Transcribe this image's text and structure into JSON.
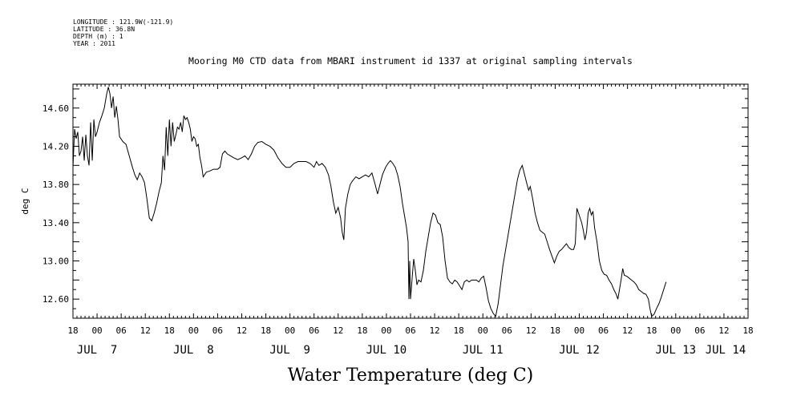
{
  "header": {
    "lines": [
      "LONGITUDE : 121.9W(-121.9)",
      "LATITUDE : 36.8N",
      "DEPTH (m) : 1",
      "YEAR : 2011"
    ]
  },
  "chart_data": {
    "type": "line",
    "title": "Mooring M0 CTD data from MBARI instrument id 1337 at original sampling intervals",
    "xlabel": "Water Temperature (deg C)",
    "ylabel": "deg C",
    "x_unit": "hours since JUL 6 18:00 (2011)",
    "xlim": [
      0,
      168
    ],
    "ylim": [
      12.4,
      14.85
    ],
    "y_ticks": [
      12.6,
      13.0,
      13.4,
      13.8,
      14.2,
      14.6
    ],
    "y_tick_labels": [
      "12.60",
      "13.00",
      "13.40",
      "13.80",
      "14.20",
      "14.60"
    ],
    "x_hour_labels": [
      "18",
      "00",
      "06",
      "12",
      "18",
      "00",
      "06",
      "12",
      "18",
      "00",
      "06",
      "12",
      "18",
      "00",
      "06",
      "12",
      "18",
      "00",
      "06",
      "12",
      "18",
      "00",
      "06",
      "12",
      "18",
      "00",
      "06",
      "12",
      "18"
    ],
    "day_labels": [
      {
        "text": "JUL  7",
        "hour": 6
      },
      {
        "text": "JUL  8",
        "hour": 30
      },
      {
        "text": "JUL  9",
        "hour": 54
      },
      {
        "text": "JUL 10",
        "hour": 78
      },
      {
        "text": "JUL 11",
        "hour": 102
      },
      {
        "text": "JUL 12",
        "hour": 126
      },
      {
        "text": "JUL 13",
        "hour": 150
      },
      {
        "text": "JUL 14",
        "hour": 174
      }
    ],
    "series": [
      {
        "color": "#000000",
        "points": [
          [
            0,
            13.98
          ],
          [
            0.4,
            14.38
          ],
          [
            0.8,
            14.28
          ],
          [
            1.2,
            14.35
          ],
          [
            1.6,
            14.1
          ],
          [
            2,
            14.15
          ],
          [
            2.4,
            14.3
          ],
          [
            2.8,
            14.05
          ],
          [
            3.2,
            14.32
          ],
          [
            3.6,
            14.1
          ],
          [
            4,
            14.0
          ],
          [
            4.4,
            14.45
          ],
          [
            4.8,
            14.05
          ],
          [
            5.2,
            14.48
          ],
          [
            5.6,
            14.3
          ],
          [
            6,
            14.35
          ],
          [
            6.6,
            14.45
          ],
          [
            7.2,
            14.52
          ],
          [
            7.8,
            14.6
          ],
          [
            8.4,
            14.75
          ],
          [
            8.8,
            14.82
          ],
          [
            9.2,
            14.75
          ],
          [
            9.6,
            14.6
          ],
          [
            10,
            14.72
          ],
          [
            10.4,
            14.5
          ],
          [
            10.8,
            14.62
          ],
          [
            11.2,
            14.48
          ],
          [
            11.6,
            14.3
          ],
          [
            12.4,
            14.25
          ],
          [
            13.2,
            14.22
          ],
          [
            14,
            14.1
          ],
          [
            14.8,
            13.98
          ],
          [
            15.4,
            13.9
          ],
          [
            16,
            13.85
          ],
          [
            16.6,
            13.92
          ],
          [
            17.2,
            13.88
          ],
          [
            17.8,
            13.82
          ],
          [
            18.4,
            13.65
          ],
          [
            19,
            13.45
          ],
          [
            19.6,
            13.42
          ],
          [
            20.2,
            13.5
          ],
          [
            20.8,
            13.6
          ],
          [
            21.4,
            13.72
          ],
          [
            22,
            13.82
          ],
          [
            22.4,
            14.1
          ],
          [
            22.8,
            13.95
          ],
          [
            23.2,
            14.4
          ],
          [
            23.6,
            14.1
          ],
          [
            24,
            14.48
          ],
          [
            24.4,
            14.2
          ],
          [
            24.8,
            14.45
          ],
          [
            25.2,
            14.25
          ],
          [
            25.6,
            14.32
          ],
          [
            26,
            14.4
          ],
          [
            26.4,
            14.38
          ],
          [
            26.8,
            14.45
          ],
          [
            27.2,
            14.35
          ],
          [
            27.6,
            14.52
          ],
          [
            28,
            14.48
          ],
          [
            28.4,
            14.5
          ],
          [
            28.8,
            14.45
          ],
          [
            29.2,
            14.38
          ],
          [
            29.6,
            14.25
          ],
          [
            30,
            14.3
          ],
          [
            30.4,
            14.28
          ],
          [
            30.8,
            14.2
          ],
          [
            31.2,
            14.22
          ],
          [
            31.6,
            14.08
          ],
          [
            32,
            14.0
          ],
          [
            32.4,
            13.88
          ],
          [
            33.2,
            13.93
          ],
          [
            34,
            13.94
          ],
          [
            35,
            13.96
          ],
          [
            36,
            13.96
          ],
          [
            36.6,
            13.98
          ],
          [
            37.2,
            14.12
          ],
          [
            37.8,
            14.15
          ],
          [
            38.4,
            14.12
          ],
          [
            39.2,
            14.1
          ],
          [
            40,
            14.08
          ],
          [
            41,
            14.06
          ],
          [
            42,
            14.08
          ],
          [
            42.8,
            14.1
          ],
          [
            43.6,
            14.06
          ],
          [
            44.4,
            14.12
          ],
          [
            45.2,
            14.2
          ],
          [
            46,
            14.24
          ],
          [
            47,
            14.25
          ],
          [
            48,
            14.22
          ],
          [
            49,
            14.2
          ],
          [
            50,
            14.16
          ],
          [
            51,
            14.08
          ],
          [
            52,
            14.02
          ],
          [
            53,
            13.98
          ],
          [
            54,
            13.98
          ],
          [
            55,
            14.02
          ],
          [
            56,
            14.04
          ],
          [
            57,
            14.04
          ],
          [
            58,
            14.04
          ],
          [
            59,
            14.02
          ],
          [
            60,
            13.98
          ],
          [
            60.6,
            14.04
          ],
          [
            61.2,
            14.0
          ],
          [
            62,
            14.02
          ],
          [
            62.8,
            13.98
          ],
          [
            63.6,
            13.9
          ],
          [
            64.2,
            13.78
          ],
          [
            64.8,
            13.62
          ],
          [
            65.4,
            13.5
          ],
          [
            66,
            13.56
          ],
          [
            66.6,
            13.45
          ],
          [
            67,
            13.3
          ],
          [
            67.4,
            13.22
          ],
          [
            67.8,
            13.55
          ],
          [
            68.4,
            13.7
          ],
          [
            69,
            13.8
          ],
          [
            69.6,
            13.84
          ],
          [
            70.4,
            13.88
          ],
          [
            71.2,
            13.86
          ],
          [
            72,
            13.88
          ],
          [
            72.8,
            13.9
          ],
          [
            73.6,
            13.88
          ],
          [
            74.4,
            13.92
          ],
          [
            75.2,
            13.8
          ],
          [
            75.8,
            13.7
          ],
          [
            76.4,
            13.8
          ],
          [
            77,
            13.9
          ],
          [
            77.8,
            13.98
          ],
          [
            78.4,
            14.02
          ],
          [
            79,
            14.05
          ],
          [
            79.6,
            14.02
          ],
          [
            80.2,
            13.98
          ],
          [
            80.8,
            13.9
          ],
          [
            81.4,
            13.78
          ],
          [
            82,
            13.6
          ],
          [
            82.6,
            13.45
          ],
          [
            83,
            13.35
          ],
          [
            83.4,
            13.2
          ],
          [
            83.6,
            12.6
          ],
          [
            83.8,
            13.0
          ],
          [
            84,
            12.6
          ],
          [
            84.4,
            12.82
          ],
          [
            84.8,
            13.02
          ],
          [
            85.2,
            12.9
          ],
          [
            85.6,
            12.75
          ],
          [
            86,
            12.8
          ],
          [
            86.6,
            12.78
          ],
          [
            87.2,
            12.9
          ],
          [
            87.8,
            13.1
          ],
          [
            88.4,
            13.25
          ],
          [
            89,
            13.4
          ],
          [
            89.6,
            13.5
          ],
          [
            90.2,
            13.48
          ],
          [
            90.8,
            13.4
          ],
          [
            91.4,
            13.38
          ],
          [
            92,
            13.25
          ],
          [
            92.6,
            13.0
          ],
          [
            93.2,
            12.82
          ],
          [
            93.8,
            12.78
          ],
          [
            94.4,
            12.76
          ],
          [
            95,
            12.8
          ],
          [
            95.6,
            12.78
          ],
          [
            96.2,
            12.74
          ],
          [
            96.8,
            12.7
          ],
          [
            97.4,
            12.78
          ],
          [
            98,
            12.8
          ],
          [
            98.6,
            12.78
          ],
          [
            99.2,
            12.8
          ],
          [
            99.8,
            12.8
          ],
          [
            100.4,
            12.8
          ],
          [
            101,
            12.78
          ],
          [
            101.6,
            12.82
          ],
          [
            102.2,
            12.84
          ],
          [
            102.8,
            12.72
          ],
          [
            103.4,
            12.58
          ],
          [
            104,
            12.5
          ],
          [
            104.6,
            12.45
          ],
          [
            105.2,
            12.42
          ],
          [
            105.8,
            12.55
          ],
          [
            106.4,
            12.75
          ],
          [
            107,
            12.95
          ],
          [
            107.6,
            13.1
          ],
          [
            108.2,
            13.25
          ],
          [
            108.8,
            13.4
          ],
          [
            109.4,
            13.55
          ],
          [
            110,
            13.7
          ],
          [
            110.6,
            13.85
          ],
          [
            111.2,
            13.95
          ],
          [
            111.8,
            14.0
          ],
          [
            112.4,
            13.9
          ],
          [
            113,
            13.8
          ],
          [
            113.4,
            13.74
          ],
          [
            113.8,
            13.78
          ],
          [
            114.4,
            13.65
          ],
          [
            115,
            13.5
          ],
          [
            115.6,
            13.4
          ],
          [
            116.2,
            13.32
          ],
          [
            116.8,
            13.3
          ],
          [
            117.4,
            13.28
          ],
          [
            118,
            13.2
          ],
          [
            118.6,
            13.12
          ],
          [
            119.2,
            13.05
          ],
          [
            119.8,
            12.98
          ],
          [
            120.4,
            13.05
          ],
          [
            121,
            13.1
          ],
          [
            121.6,
            13.12
          ],
          [
            122.2,
            13.15
          ],
          [
            122.8,
            13.18
          ],
          [
            123.4,
            13.14
          ],
          [
            124,
            13.12
          ],
          [
            124.6,
            13.12
          ],
          [
            125,
            13.18
          ],
          [
            125.4,
            13.55
          ],
          [
            125.8,
            13.5
          ],
          [
            126.2,
            13.45
          ],
          [
            126.6,
            13.4
          ],
          [
            127,
            13.32
          ],
          [
            127.4,
            13.22
          ],
          [
            127.8,
            13.3
          ],
          [
            128.2,
            13.5
          ],
          [
            128.6,
            13.55
          ],
          [
            129,
            13.48
          ],
          [
            129.4,
            13.52
          ],
          [
            129.8,
            13.35
          ],
          [
            130.4,
            13.2
          ],
          [
            131,
            13.0
          ],
          [
            131.6,
            12.9
          ],
          [
            132.2,
            12.86
          ],
          [
            132.8,
            12.85
          ],
          [
            133.4,
            12.8
          ],
          [
            134,
            12.76
          ],
          [
            134.6,
            12.7
          ],
          [
            135.2,
            12.65
          ],
          [
            135.6,
            12.6
          ],
          [
            136,
            12.7
          ],
          [
            136.4,
            12.8
          ],
          [
            136.8,
            12.92
          ],
          [
            137.2,
            12.85
          ],
          [
            137.8,
            12.84
          ],
          [
            138.4,
            12.82
          ],
          [
            139,
            12.8
          ],
          [
            139.6,
            12.78
          ],
          [
            140.2,
            12.75
          ],
          [
            140.8,
            12.7
          ],
          [
            141.4,
            12.68
          ],
          [
            142,
            12.66
          ],
          [
            142.6,
            12.65
          ],
          [
            143.2,
            12.6
          ],
          [
            143.6,
            12.5
          ],
          [
            144,
            12.42
          ],
          [
            144.6,
            12.44
          ],
          [
            145.2,
            12.5
          ],
          [
            145.8,
            12.55
          ],
          [
            146.4,
            12.62
          ],
          [
            147,
            12.7
          ],
          [
            147.6,
            12.78
          ]
        ]
      }
    ]
  }
}
